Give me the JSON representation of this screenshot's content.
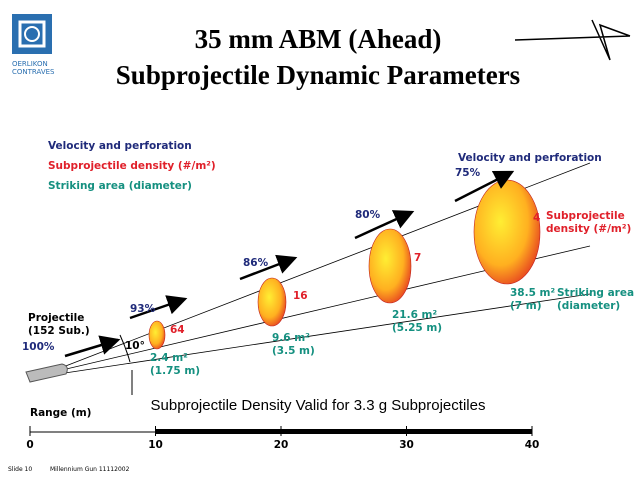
{
  "title": {
    "line1": "35 mm ABM (Ahead)",
    "line2": "Subprojectile Dynamic Parameters"
  },
  "logo": {
    "line1": "OERLIKON",
    "line2": "CONTRAVES"
  },
  "legend": [
    "Velocity and perforation",
    "Subprojectile density (#/m²)",
    "Striking area (diameter)"
  ],
  "projectile": {
    "label": "Projectile",
    "count": "(152 Sub.)",
    "velocity": "100%"
  },
  "angle": "10°",
  "stations": [
    {
      "velocity": "93%",
      "density": "64",
      "area": "2.4 m²",
      "diameter": "(1.75 m)"
    },
    {
      "velocity": "86%",
      "density": "16",
      "area": "9.6 m²",
      "diameter": "(3.5 m)"
    },
    {
      "velocity": "80%",
      "density": "7",
      "area": "21.6 m²",
      "diameter": "(5.25 m)"
    },
    {
      "velocity": "75%",
      "density": "4",
      "area": "38.5 m²",
      "diameter": "(7 m)"
    }
  ],
  "right_labels": {
    "velocity": "Velocity and perforation",
    "density": [
      "Subprojectile",
      "density (#/m²)"
    ],
    "area": [
      "Striking area",
      "(diameter)"
    ]
  },
  "note": "Subprojectile Density Valid for 3.3 g Subprojectiles",
  "range_axis": {
    "label": "Range (m)",
    "ticks": [
      0,
      10,
      20,
      30,
      40
    ]
  },
  "footer": {
    "slide": "Slide 10",
    "name": "Millennium Gun 11112002"
  }
}
